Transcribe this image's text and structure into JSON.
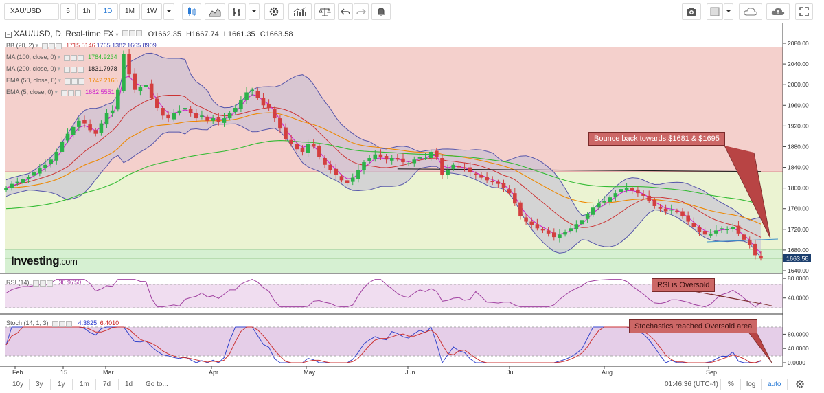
{
  "toolbar": {
    "symbol": "XAU/USD",
    "intervals": [
      "5",
      "1h",
      "1D",
      "1M",
      "1W"
    ],
    "active_interval": "1D"
  },
  "header": {
    "title": "XAU/USD, D, Real-time FX",
    "open": "O1662.35",
    "high": "H1667.74",
    "low": "L1661.35",
    "close": "C1663.58"
  },
  "indicators": [
    {
      "name": "BB (20, 2)",
      "values": [
        "1715.5146",
        "1765.1382",
        "1665.8909"
      ],
      "colors": [
        "#cc3333",
        "#3333aa",
        "#3333aa"
      ]
    },
    {
      "name": "MA (100, close, 0)",
      "values": [
        "1784.9234"
      ],
      "colors": [
        "#33bb33"
      ]
    },
    {
      "name": "MA (200, close, 0)",
      "values": [
        "1831.7978"
      ],
      "colors": [
        "#222222"
      ]
    },
    {
      "name": "EMA (50, close, 0)",
      "values": [
        "1742.2165"
      ],
      "colors": [
        "#ee8800"
      ]
    },
    {
      "name": "EMA (5, close, 0)",
      "values": [
        "1682.5551"
      ],
      "colors": [
        "#cc22cc"
      ]
    }
  ],
  "rsi": {
    "label": "RSI (14)",
    "value": "30.9750"
  },
  "stoch": {
    "label": "Stoch (14, 1, 3)",
    "k": "4.3825",
    "d": "6.4010"
  },
  "price_axis": [
    "2080.00",
    "2040.00",
    "2000.00",
    "1960.00",
    "1920.00",
    "1880.00",
    "1840.00",
    "1800.00",
    "1760.00",
    "1720.00",
    "1680.00",
    "1640.00"
  ],
  "current_price": "1663.58",
  "rsi_axis": [
    "80.0000",
    "40.0000"
  ],
  "stoch_axis": [
    "80.0000",
    "40.0000",
    "0.0000"
  ],
  "date_axis": [
    "Feb",
    "15",
    "Mar",
    "Apr",
    "May",
    "Jun",
    "Jul",
    "Aug",
    "Sep"
  ],
  "callouts": {
    "bounce": "Bounce back towards $1681 & $1695",
    "rsi": "RSI is Oversold",
    "stoch": "Stochastics reached Oversold area"
  },
  "logo": {
    "brand": "Investing",
    "suffix": ".com"
  },
  "bottom": {
    "ranges": [
      "10y",
      "3y",
      "1y",
      "1m",
      "7d",
      "1d"
    ],
    "goto": "Go to...",
    "time": "01:46:36 (UTC-4)",
    "percent": "%",
    "log": "log",
    "auto": "auto"
  },
  "colors": {
    "up_candle": "#2db24a",
    "down_candle": "#d33f3f",
    "upper_zone": "#f4d0cc",
    "middle_zone": "#ebf3d2",
    "lower_zone": "#d6f0d2",
    "bands_fill": "#c4c0d6",
    "rsi_fill": "#f0ddf0",
    "stoch_fill": "#d0a6d6"
  },
  "chart_data": {
    "type": "candlestick",
    "price_zones": [
      2080,
      1830,
      1680,
      1640
    ],
    "close_series": [
      1800,
      1808,
      1812,
      1818,
      1822,
      1830,
      1838,
      1845,
      1855,
      1870,
      1890,
      1905,
      1918,
      1930,
      1925,
      1912,
      1905,
      1925,
      1945,
      1950,
      1990,
      2060,
      2020,
      1990,
      1995,
      2000,
      1975,
      1955,
      1940,
      1935,
      1945,
      1950,
      1955,
      1945,
      1935,
      1940,
      1930,
      1935,
      1928,
      1935,
      1945,
      1955,
      1970,
      1985,
      1990,
      1975,
      1960,
      1955,
      1935,
      1915,
      1895,
      1885,
      1875,
      1870,
      1885,
      1880,
      1860,
      1845,
      1835,
      1825,
      1815,
      1810,
      1820,
      1835,
      1850,
      1858,
      1865,
      1860,
      1855,
      1858,
      1855,
      1850,
      1848,
      1855,
      1860,
      1858,
      1870,
      1860,
      1825,
      1835,
      1845,
      1840,
      1838,
      1830,
      1825,
      1820,
      1815,
      1812,
      1808,
      1800,
      1790,
      1770,
      1745,
      1735,
      1728,
      1722,
      1718,
      1712,
      1705,
      1710,
      1715,
      1722,
      1730,
      1738,
      1750,
      1762,
      1770,
      1775,
      1782,
      1790,
      1798,
      1800,
      1795,
      1790,
      1785,
      1775,
      1765,
      1760,
      1755,
      1758,
      1755,
      1745,
      1735,
      1725,
      1715,
      1710,
      1712,
      1718,
      1722,
      1720,
      1725,
      1712,
      1700,
      1690,
      1670,
      1663.58
    ],
    "ema5_current": 1682.555,
    "ma100_current": 1784.92,
    "ma200_current": 1831.8,
    "ema50_current": 1742.22,
    "bb_upper_current": 1765.14,
    "bb_middle_current": 1715.51,
    "bb_lower_current": 1665.89,
    "rsi_current": 30.975,
    "stoch_k_current": 4.3825,
    "stoch_d_current": 6.401
  }
}
